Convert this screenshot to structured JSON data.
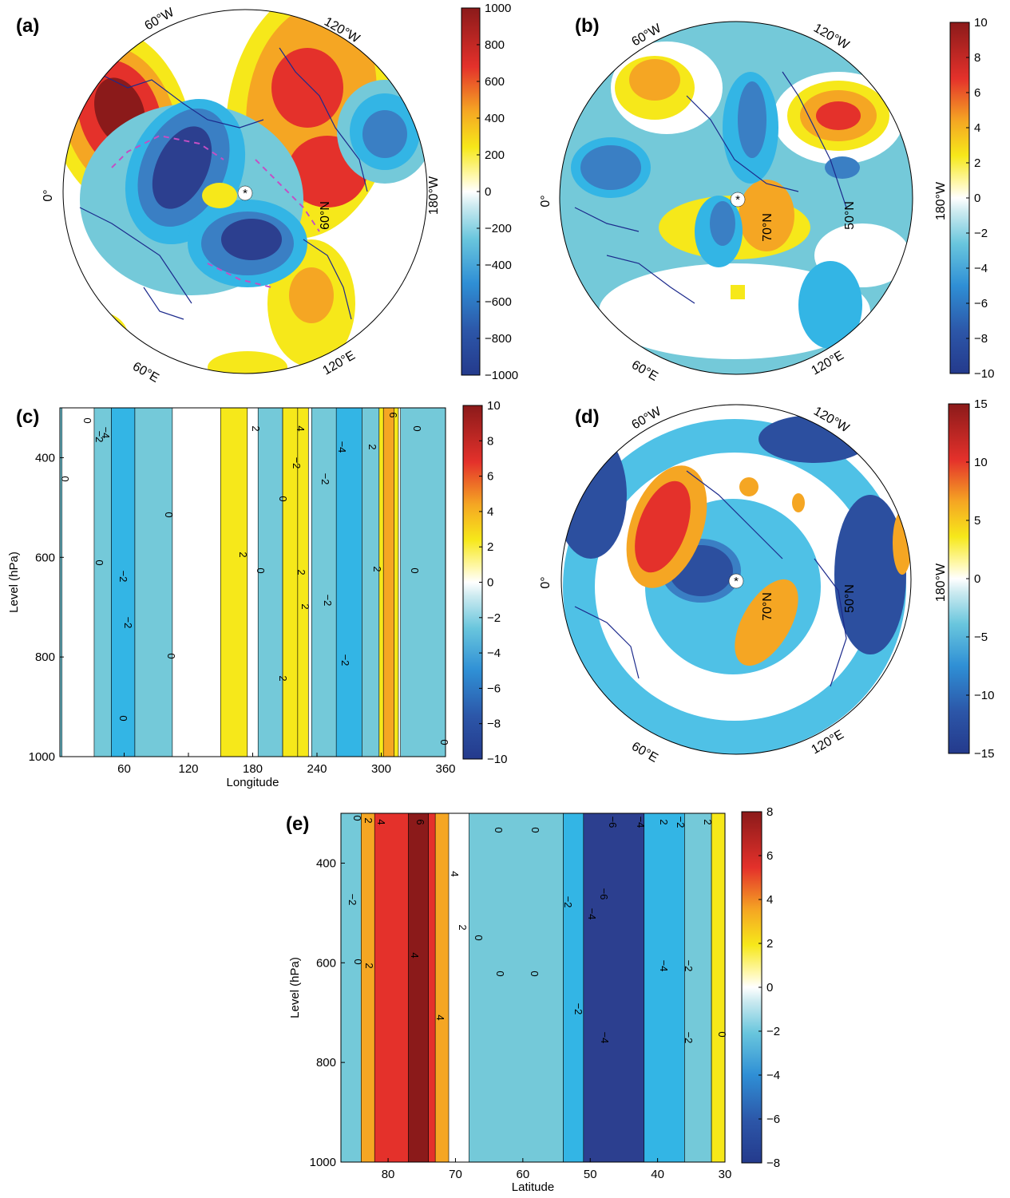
{
  "colors": {
    "dark_red": "#8b1a1a",
    "red": "#e4312b",
    "orange": "#f07a22",
    "amber": "#f5a623",
    "yellow": "#f6e81a",
    "white": "#ffffff",
    "light_blue": "#74c9d9",
    "sky_blue": "#33b5e5",
    "blue": "#3a7fc4",
    "dark_blue": "#2c3f8f",
    "coast": "#1c2a8c",
    "vector": "#c44fc4"
  },
  "map_labels": {
    "a": [
      "60°W",
      "120°W",
      "0°",
      "180°W",
      "60°E",
      "120°E",
      "60°N"
    ],
    "b": [
      "60°W",
      "120°W",
      "0°",
      "180°W",
      "60°E",
      "120°E",
      "70°N",
      "50°N"
    ],
    "d": [
      "60°W",
      "120°W",
      "0°",
      "180°W",
      "60°E",
      "120°E",
      "70°N",
      "50°N"
    ]
  },
  "chart_data": [
    {
      "panel": "(a)",
      "type": "heatmap",
      "projection": "north-polar-stereographic",
      "overlay": "vectors",
      "colorbar": {
        "min": -1000,
        "max": 1000,
        "ticks": [
          "1000",
          "800",
          "600",
          "400",
          "200",
          "0",
          "-200",
          "-400",
          "-600",
          "-800",
          "-1000"
        ]
      },
      "anomaly_centers": [
        {
          "lon_label": "near 60°W",
          "sign": "positive",
          "value": 1000
        },
        {
          "lon_label": "120°W-180°W",
          "sign": "positive",
          "value": 700
        },
        {
          "lon_label": "0°-60°E",
          "sign": "negative",
          "value": -900
        },
        {
          "lon_label": "60°E-120°E",
          "sign": "negative",
          "value": -900
        },
        {
          "lon_label": "near 180°W",
          "sign": "negative",
          "value": -600
        }
      ]
    },
    {
      "panel": "(b)",
      "type": "heatmap",
      "projection": "north-polar-stereographic",
      "colorbar": {
        "min": -10,
        "max": 10,
        "ticks": [
          "10",
          "8",
          "6",
          "4",
          "2",
          "0",
          "-2",
          "-4",
          "-6",
          "-8",
          "-10"
        ]
      },
      "anomaly_centers": [
        {
          "lon_label": "near 120°W-180°W",
          "sign": "positive",
          "value": 8
        },
        {
          "lon_label": "near 60°W",
          "sign": "positive",
          "value": 4
        },
        {
          "lon_label": "0°-60°W",
          "sign": "negative",
          "value": -6
        },
        {
          "lon_label": "near 90°W",
          "sign": "negative",
          "value": -6
        }
      ]
    },
    {
      "panel": "(c)",
      "type": "heatmap",
      "orientation": "pressure-longitude",
      "xlabel": "Longitude",
      "ylabel": "Level (hPa)",
      "xlim": [
        0,
        360
      ],
      "ylim": [
        1000,
        300
      ],
      "xticks": [
        "60",
        "120",
        "180",
        "240",
        "300",
        "360"
      ],
      "yticks": [
        "400",
        "600",
        "800",
        "1000"
      ],
      "colorbar": {
        "min": -10,
        "max": 10,
        "ticks": [
          "10",
          "8",
          "6",
          "4",
          "2",
          "0",
          "-2",
          "-4",
          "-6",
          "-8",
          "-10"
        ]
      },
      "contour_labels": [
        "0",
        "-2",
        "-4",
        "2",
        "4",
        "6"
      ],
      "bands": [
        {
          "lon_start": 0,
          "lon_end": 2,
          "value": -1
        },
        {
          "lon_start": 32,
          "lon_end": 48,
          "value": -1
        },
        {
          "lon_start": 48,
          "lon_end": 70,
          "value": -3
        },
        {
          "lon_start": 70,
          "lon_end": 105,
          "value": -1
        },
        {
          "lon_start": 150,
          "lon_end": 175,
          "value": 1
        },
        {
          "lon_start": 185,
          "lon_end": 208,
          "value": -1
        },
        {
          "lon_start": 208,
          "lon_end": 222,
          "value": 1
        },
        {
          "lon_start": 222,
          "lon_end": 232,
          "value": 1
        },
        {
          "lon_start": 235,
          "lon_end": 260,
          "value": -1
        },
        {
          "lon_start": 258,
          "lon_end": 282,
          "value": -3
        },
        {
          "lon_start": 282,
          "lon_end": 300,
          "value": -1
        },
        {
          "lon_start": 298,
          "lon_end": 316,
          "value": 1
        },
        {
          "lon_start": 302,
          "lon_end": 312,
          "value": 3
        },
        {
          "lon_start": 318,
          "lon_end": 360,
          "value": -1
        }
      ]
    },
    {
      "panel": "(d)",
      "type": "heatmap",
      "projection": "north-polar-stereographic",
      "colorbar": {
        "min": -15,
        "max": 15,
        "ticks": [
          "15",
          "10",
          "5",
          "0",
          "-5",
          "-10",
          "-15"
        ]
      },
      "anomaly_centers": [
        {
          "lon_label": "near 60°W-0°",
          "sign": "positive",
          "value": 12
        },
        {
          "lon_label": "near 60°W",
          "sign": "negative",
          "value": -12
        },
        {
          "lon_label": "near 120°W",
          "sign": "negative",
          "value": -12
        },
        {
          "lon_label": "near 180°W-120°E",
          "sign": "negative",
          "value": -12
        },
        {
          "lon_label": "near the pole",
          "sign": "negative",
          "value": -12
        }
      ]
    },
    {
      "panel": "(e)",
      "type": "heatmap",
      "orientation": "pressure-latitude",
      "xlabel": "Latitude",
      "ylabel": "Level (hPa)",
      "xlim": [
        87,
        30
      ],
      "ylim": [
        1000,
        300
      ],
      "xticks": [
        "80",
        "70",
        "60",
        "50",
        "40",
        "30"
      ],
      "yticks": [
        "400",
        "600",
        "800",
        "1000"
      ],
      "colorbar": {
        "min": -8,
        "max": 8,
        "ticks": [
          "8",
          "6",
          "4",
          "2",
          "0",
          "-2",
          "-4",
          "-6",
          "-8"
        ]
      },
      "contour_labels": [
        "0",
        "2",
        "4",
        "6",
        "-2",
        "-4",
        "-6"
      ],
      "bands": [
        {
          "lat_start": 87,
          "lat_end": 84,
          "value": -1
        },
        {
          "lat_start": 84,
          "lat_end": 71,
          "value": 3
        },
        {
          "lat_start": 82,
          "lat_end": 73,
          "value": 5
        },
        {
          "lat_start": 77,
          "lat_end": 74,
          "value": 7
        },
        {
          "lat_start": 68,
          "lat_end": 54,
          "value": -1
        },
        {
          "lat_start": 54,
          "lat_end": 36,
          "value": -3
        },
        {
          "lat_start": 51,
          "lat_end": 42,
          "value": -7
        },
        {
          "lat_start": 36,
          "lat_end": 32,
          "value": -1
        },
        {
          "lat_start": 32,
          "lat_end": 30,
          "value": 1
        }
      ]
    }
  ]
}
